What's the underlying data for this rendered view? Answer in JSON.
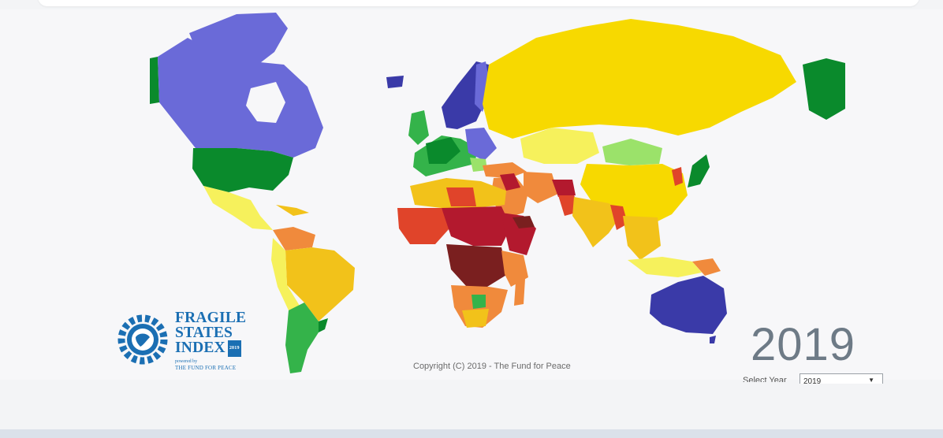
{
  "map": {
    "copyright": "Copyright (C) 2019 - The Fund for Peace",
    "year_display": "2019",
    "year_selector": {
      "label": "Select Year",
      "value": "2019"
    },
    "palette": {
      "very_sustainable": "#3a3aa8",
      "sustainable": "#6a6ad8",
      "very_stable": "#0a8a2c",
      "stable": "#34b34a",
      "more_stable": "#9be26a",
      "warning": "#f6f15c",
      "elevated_warning": "#f7d900",
      "high_warning": "#f2c21a",
      "alert": "#f08a3c",
      "high_alert": "#e0442a",
      "very_high_alert": "#b3192e",
      "extreme": "#7a1f1f"
    }
  },
  "logo": {
    "lines": [
      "FRAGILE",
      "STATES",
      "INDEX"
    ],
    "badge": "2019",
    "powered_by": "powered by",
    "org": "THE FUND FOR PEACE"
  }
}
